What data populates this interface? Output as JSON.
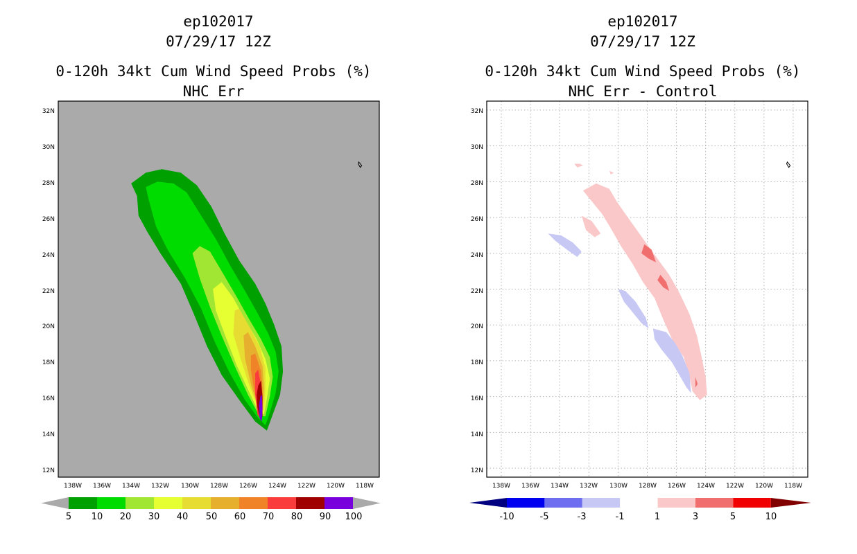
{
  "chart_data": [
    {
      "type": "contour-map",
      "title_lines": [
        "ep102017",
        "07/29/17 12Z",
        "0-120h 34kt Cum Wind Speed Probs (%)",
        "NHC Err"
      ],
      "xlim": [
        -139,
        -117
      ],
      "ylim": [
        11.5,
        32.5
      ],
      "x_ticks": [
        "138W",
        "136W",
        "134W",
        "132W",
        "130W",
        "128W",
        "126W",
        "124W",
        "122W",
        "120W",
        "118W"
      ],
      "y_ticks": [
        "12N",
        "14N",
        "16N",
        "18N",
        "20N",
        "22N",
        "24N",
        "26N",
        "28N",
        "30N",
        "32N"
      ],
      "background_color": "#aaaaaa",
      "levels": [
        5,
        10,
        20,
        30,
        40,
        50,
        60,
        70,
        80,
        90,
        100
      ],
      "level_labels": [
        "5",
        "10",
        "20",
        "30",
        "40",
        "50",
        "60",
        "70",
        "80",
        "90",
        "100"
      ],
      "colors": [
        "#00a000",
        "#00dc00",
        "#a0e632",
        "#e6ff32",
        "#e6dc32",
        "#e6af2d",
        "#f08228",
        "#fa3c3c",
        "#a00000",
        "#7800dc"
      ],
      "contours": [
        {
          "level": 5,
          "color": "#00a000",
          "points": [
            [
              -133.6,
              27.2
            ],
            [
              -134,
              27.9
            ],
            [
              -133,
              28.5
            ],
            [
              -131.9,
              28.7
            ],
            [
              -130.6,
              28.5
            ],
            [
              -129.5,
              27.8
            ],
            [
              -128.5,
              26.6
            ],
            [
              -127.6,
              25.1
            ],
            [
              -126.6,
              23.6
            ],
            [
              -125.5,
              22.3
            ],
            [
              -124.8,
              21.2
            ],
            [
              -124.2,
              20
            ],
            [
              -123.7,
              18.8
            ],
            [
              -123.6,
              17.4
            ],
            [
              -123.8,
              16.1
            ],
            [
              -124.3,
              15
            ],
            [
              -124.7,
              14.1
            ],
            [
              -125.5,
              14.6
            ],
            [
              -126.5,
              15.7
            ],
            [
              -127.8,
              17.2
            ],
            [
              -128.8,
              18.8
            ],
            [
              -129.7,
              20.6
            ],
            [
              -130.6,
              22.3
            ],
            [
              -132,
              24
            ],
            [
              -132.9,
              25.2
            ],
            [
              -133.5,
              26.1
            ]
          ]
        },
        {
          "level": 10,
          "color": "#00dc00",
          "points": [
            [
              -132.8,
              27
            ],
            [
              -133,
              27.7
            ],
            [
              -132.2,
              28
            ],
            [
              -131.1,
              27.9
            ],
            [
              -130.2,
              27.4
            ],
            [
              -129.2,
              26.1
            ],
            [
              -128.2,
              24.8
            ],
            [
              -127.2,
              23.3
            ],
            [
              -126.2,
              21.9
            ],
            [
              -125.3,
              20.6
            ],
            [
              -124.6,
              19.5
            ],
            [
              -124.1,
              18.5
            ],
            [
              -123.9,
              17.4
            ],
            [
              -124.1,
              16.2
            ],
            [
              -124.5,
              15.1
            ],
            [
              -124.8,
              14.4
            ],
            [
              -125.3,
              14.8
            ],
            [
              -126.2,
              15.8
            ],
            [
              -127.3,
              17.4
            ],
            [
              -128.3,
              19.1
            ],
            [
              -129.2,
              20.9
            ],
            [
              -130.3,
              22.6
            ],
            [
              -131.5,
              24.2
            ],
            [
              -132.3,
              25.5
            ]
          ]
        },
        {
          "level": 20,
          "color": "#a0e632",
          "points": [
            [
              -129.8,
              24
            ],
            [
              -129.3,
              24.4
            ],
            [
              -128.6,
              24.1
            ],
            [
              -127.8,
              23
            ],
            [
              -126.8,
              21.6
            ],
            [
              -125.9,
              20.3
            ],
            [
              -125.1,
              19.2
            ],
            [
              -124.5,
              18.2
            ],
            [
              -124.3,
              17.1
            ],
            [
              -124.5,
              16
            ],
            [
              -124.8,
              14.9
            ],
            [
              -125.2,
              14.9
            ],
            [
              -126,
              16.1
            ],
            [
              -126.9,
              17.7
            ],
            [
              -127.8,
              19.4
            ],
            [
              -128.6,
              21
            ],
            [
              -129.3,
              22.6
            ]
          ]
        },
        {
          "level": 30,
          "color": "#e6ff32",
          "points": [
            [
              -128.4,
              22
            ],
            [
              -127.8,
              22.4
            ],
            [
              -127,
              21.5
            ],
            [
              -126.2,
              20.3
            ],
            [
              -125.4,
              19.2
            ],
            [
              -124.8,
              18.1
            ],
            [
              -124.5,
              17
            ],
            [
              -124.7,
              15.9
            ],
            [
              -124.9,
              15
            ],
            [
              -125.3,
              15.2
            ],
            [
              -126,
              16.4
            ],
            [
              -126.8,
              17.8
            ],
            [
              -127.6,
              19.5
            ],
            [
              -128.2,
              20.8
            ]
          ]
        },
        {
          "level": 40,
          "color": "#e6dc32",
          "points": [
            [
              -126.9,
              20.8
            ],
            [
              -126.6,
              20.9
            ],
            [
              -125.9,
              19.9
            ],
            [
              -125.2,
              18.8
            ],
            [
              -124.8,
              17.6
            ],
            [
              -124.8,
              16.4
            ],
            [
              -124.9,
              15.2
            ],
            [
              -125.3,
              15.4
            ],
            [
              -125.9,
              16.6
            ],
            [
              -126.5,
              18.1
            ],
            [
              -127,
              19.5
            ]
          ]
        },
        {
          "level": 50,
          "color": "#e6af2d",
          "points": [
            [
              -126.3,
              19.4
            ],
            [
              -126,
              19.6
            ],
            [
              -125.5,
              18.8
            ],
            [
              -125,
              17.7
            ],
            [
              -124.9,
              16.5
            ],
            [
              -125,
              15.3
            ],
            [
              -125.3,
              15.4
            ],
            [
              -125.8,
              16.7
            ],
            [
              -126.2,
              18.1
            ]
          ]
        },
        {
          "level": 60,
          "color": "#f08228",
          "points": [
            [
              -125.8,
              18.3
            ],
            [
              -125.5,
              18.4
            ],
            [
              -125.1,
              17.4
            ],
            [
              -125,
              16.3
            ],
            [
              -125,
              15.3
            ],
            [
              -125.3,
              15.4
            ],
            [
              -125.6,
              16.5
            ],
            [
              -125.8,
              17.5
            ]
          ]
        },
        {
          "level": 70,
          "color": "#fa3c3c",
          "points": [
            [
              -125.5,
              17.3
            ],
            [
              -125.3,
              17.5
            ],
            [
              -125.1,
              16.6
            ],
            [
              -125.05,
              15.6
            ],
            [
              -125.1,
              14.7
            ],
            [
              -125.35,
              15
            ],
            [
              -125.5,
              16.1
            ]
          ]
        },
        {
          "level": 80,
          "color": "#a00000",
          "points": [
            [
              -125.3,
              16.6
            ],
            [
              -125.1,
              16.9
            ],
            [
              -125,
              16
            ],
            [
              -125,
              14.9
            ],
            [
              -125.15,
              14.7
            ],
            [
              -125.35,
              15.4
            ],
            [
              -125.4,
              16.1
            ]
          ]
        },
        {
          "level": 90,
          "color": "#7800dc",
          "points": [
            [
              -125.15,
              16
            ],
            [
              -125.05,
              16.1
            ],
            [
              -125,
              15.3
            ],
            [
              -125.05,
              14.6
            ],
            [
              -125.2,
              14.8
            ],
            [
              -125.25,
              15.5
            ]
          ]
        }
      ],
      "islands": [
        [
          [
            -118.4,
            29.1
          ],
          [
            -118.2,
            28.9
          ],
          [
            -118.3,
            28.8
          ],
          [
            -118.45,
            29
          ]
        ]
      ]
    },
    {
      "type": "contour-map",
      "title_lines": [
        "ep102017",
        "07/29/17 12Z",
        "0-120h 34kt Cum Wind Speed Probs (%)",
        "NHC Err - Control"
      ],
      "xlim": [
        -139,
        -117
      ],
      "ylim": [
        11.5,
        32.5
      ],
      "x_ticks": [
        "138W",
        "136W",
        "134W",
        "132W",
        "130W",
        "128W",
        "126W",
        "124W",
        "122W",
        "120W",
        "118W"
      ],
      "y_ticks": [
        "12N",
        "14N",
        "16N",
        "18N",
        "20N",
        "22N",
        "24N",
        "26N",
        "28N",
        "30N",
        "32N"
      ],
      "background_color": "#ffffff",
      "grid": true,
      "levels": [
        -10,
        -5,
        -3,
        -1,
        1,
        3,
        5,
        10
      ],
      "level_labels": [
        "-10",
        "-5",
        "-3",
        "-1",
        "1",
        "3",
        "5",
        "10"
      ],
      "colors": [
        "#000080",
        "#0000f0",
        "#6e6ef0",
        "#c8c8f5",
        "#ffffff",
        "#fac8c8",
        "#f06e6e",
        "#f00000",
        "#800000"
      ],
      "contours": [
        {
          "level": 1,
          "color": "#fac8c8",
          "points": [
            [
              -132.4,
              27.5
            ],
            [
              -131.5,
              27.9
            ],
            [
              -130.6,
              27.6
            ],
            [
              -130.1,
              26.9
            ],
            [
              -129.5,
              26.2
            ],
            [
              -128.8,
              25.4
            ],
            [
              -128.1,
              24.6
            ],
            [
              -127.3,
              23.7
            ],
            [
              -126.5,
              22.8
            ],
            [
              -125.8,
              21.8
            ],
            [
              -125.1,
              20.6
            ],
            [
              -124.6,
              19.4
            ],
            [
              -124.3,
              18.3
            ],
            [
              -124,
              17.1
            ],
            [
              -123.9,
              16.1
            ],
            [
              -124.4,
              15.8
            ],
            [
              -124.9,
              16.3
            ],
            [
              -125.1,
              17.1
            ],
            [
              -125.5,
              18.2
            ],
            [
              -126.3,
              19.2
            ],
            [
              -126.9,
              20.3
            ],
            [
              -127.5,
              21.5
            ],
            [
              -128.3,
              22.4
            ],
            [
              -129,
              23.4
            ],
            [
              -129.8,
              24.4
            ],
            [
              -130.5,
              25.4
            ],
            [
              -131.1,
              26.2
            ]
          ]
        },
        {
          "level": 1,
          "color": "#fac8c8",
          "points": [
            [
              -132.5,
              26.1
            ],
            [
              -131.8,
              25.8
            ],
            [
              -131.2,
              25.1
            ],
            [
              -131.6,
              24.9
            ],
            [
              -132.2,
              25.3
            ]
          ]
        },
        {
          "level": 1,
          "color": "#fac8c8",
          "points": [
            [
              -133,
              29
            ],
            [
              -132.6,
              29
            ],
            [
              -132.4,
              28.9
            ],
            [
              -132.8,
              28.8
            ]
          ]
        },
        {
          "level": 1,
          "color": "#fac8c8",
          "points": [
            [
              -130.6,
              28.6
            ],
            [
              -130.3,
              28.5
            ],
            [
              -130.5,
              28.4
            ]
          ]
        },
        {
          "level": 3,
          "color": "#f06e6e",
          "points": [
            [
              -128.2,
              24.5
            ],
            [
              -127.7,
              24.2
            ],
            [
              -127.4,
              23.5
            ],
            [
              -127.9,
              23.7
            ],
            [
              -128.4,
              24
            ]
          ]
        },
        {
          "level": 3,
          "color": "#f06e6e",
          "points": [
            [
              -127.1,
              22.8
            ],
            [
              -126.7,
              22.4
            ],
            [
              -126.5,
              21.9
            ],
            [
              -126.9,
              22.1
            ],
            [
              -127.3,
              22.5
            ]
          ]
        },
        {
          "level": 3,
          "color": "#f06e6e",
          "points": [
            [
              -124.7,
              17.1
            ],
            [
              -124.55,
              16.7
            ],
            [
              -124.7,
              16.5
            ]
          ]
        },
        {
          "level": -1,
          "color": "#c8c8f5",
          "points": [
            [
              -134.8,
              25.1
            ],
            [
              -133.9,
              25
            ],
            [
              -133.1,
              24.6
            ],
            [
              -132.5,
              24.1
            ],
            [
              -132.8,
              23.8
            ],
            [
              -133.5,
              24.2
            ],
            [
              -134.3,
              24.7
            ]
          ]
        },
        {
          "level": -1,
          "color": "#c8c8f5",
          "points": [
            [
              -130,
              22
            ],
            [
              -129.5,
              21.9
            ],
            [
              -128.8,
              21.3
            ],
            [
              -128.1,
              20.4
            ],
            [
              -127.9,
              19.8
            ],
            [
              -128.4,
              20.1
            ],
            [
              -129.1,
              20.8
            ],
            [
              -129.6,
              21.3
            ]
          ]
        },
        {
          "level": -1,
          "color": "#c8c8f5",
          "points": [
            [
              -127.6,
              19.8
            ],
            [
              -126.7,
              19.6
            ],
            [
              -126.1,
              19
            ],
            [
              -125.6,
              18.3
            ],
            [
              -125.1,
              17.3
            ],
            [
              -125,
              16.2
            ],
            [
              -125.3,
              16.5
            ],
            [
              -125.8,
              17.2
            ],
            [
              -126.3,
              17.9
            ],
            [
              -127,
              18.6
            ],
            [
              -127.5,
              19.2
            ]
          ]
        }
      ],
      "islands": [
        [
          [
            -118.4,
            29.1
          ],
          [
            -118.2,
            28.9
          ],
          [
            -118.3,
            28.8
          ],
          [
            -118.45,
            29
          ]
        ]
      ]
    }
  ]
}
